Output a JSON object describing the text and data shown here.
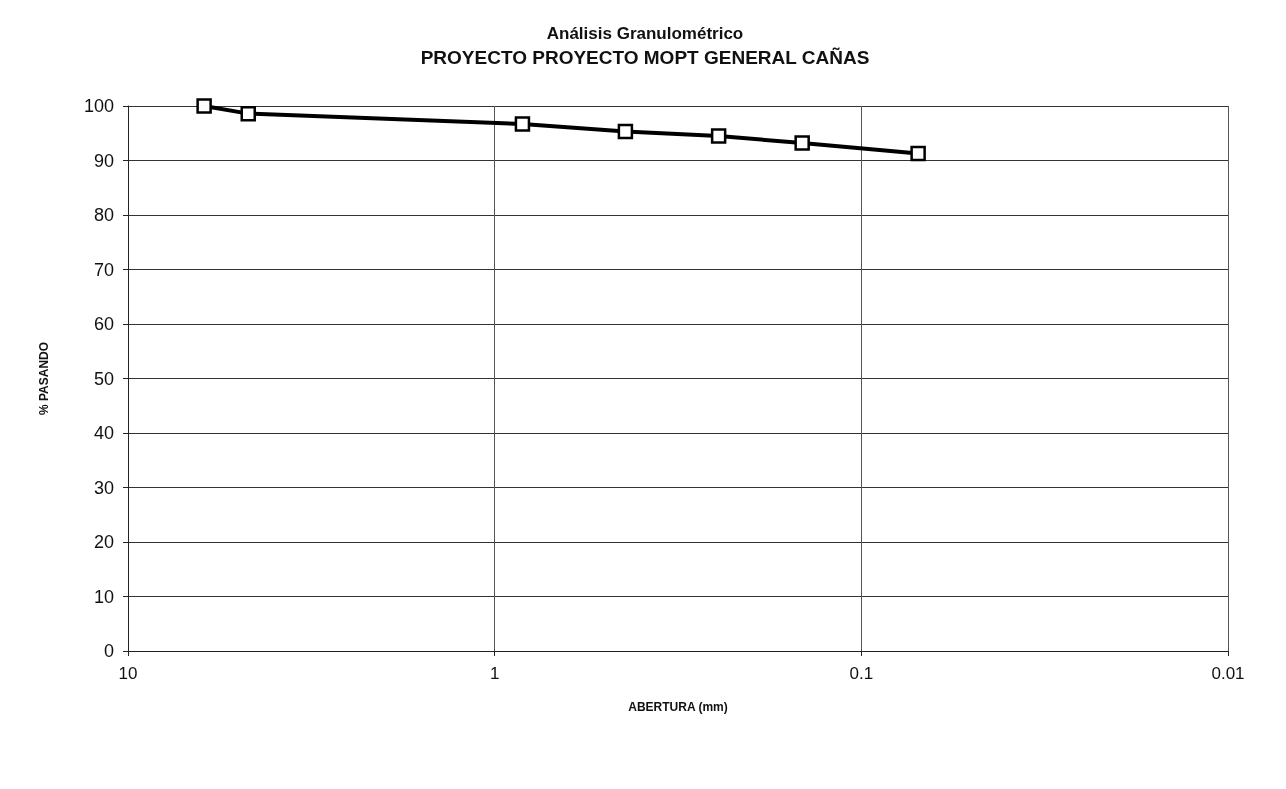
{
  "chart_data": {
    "type": "line",
    "title": "Análisis Granulométrico",
    "subtitle": "PROYECTO PROYECTO MOPT GENERAL CAÑAS",
    "xlabel": "ABERTURA (mm)",
    "ylabel": "% PASANDO",
    "x": [
      6.2,
      4.7,
      0.84,
      0.44,
      0.245,
      0.145,
      0.07
    ],
    "series": [
      {
        "color": "#000000",
        "values": [
          100,
          98.6,
          96.7,
          95.3,
          94.5,
          93.2,
          91.3
        ]
      }
    ],
    "log": "x",
    "xlim": [
      10,
      0.01
    ],
    "xticks": [
      10,
      1,
      0.1,
      0.01
    ],
    "ylim": [
      0,
      100
    ],
    "yticks": [
      0,
      10,
      20,
      30,
      40,
      50,
      60,
      70,
      80,
      90,
      100
    ],
    "grid": true,
    "marker": "square",
    "line_style": "solid"
  }
}
